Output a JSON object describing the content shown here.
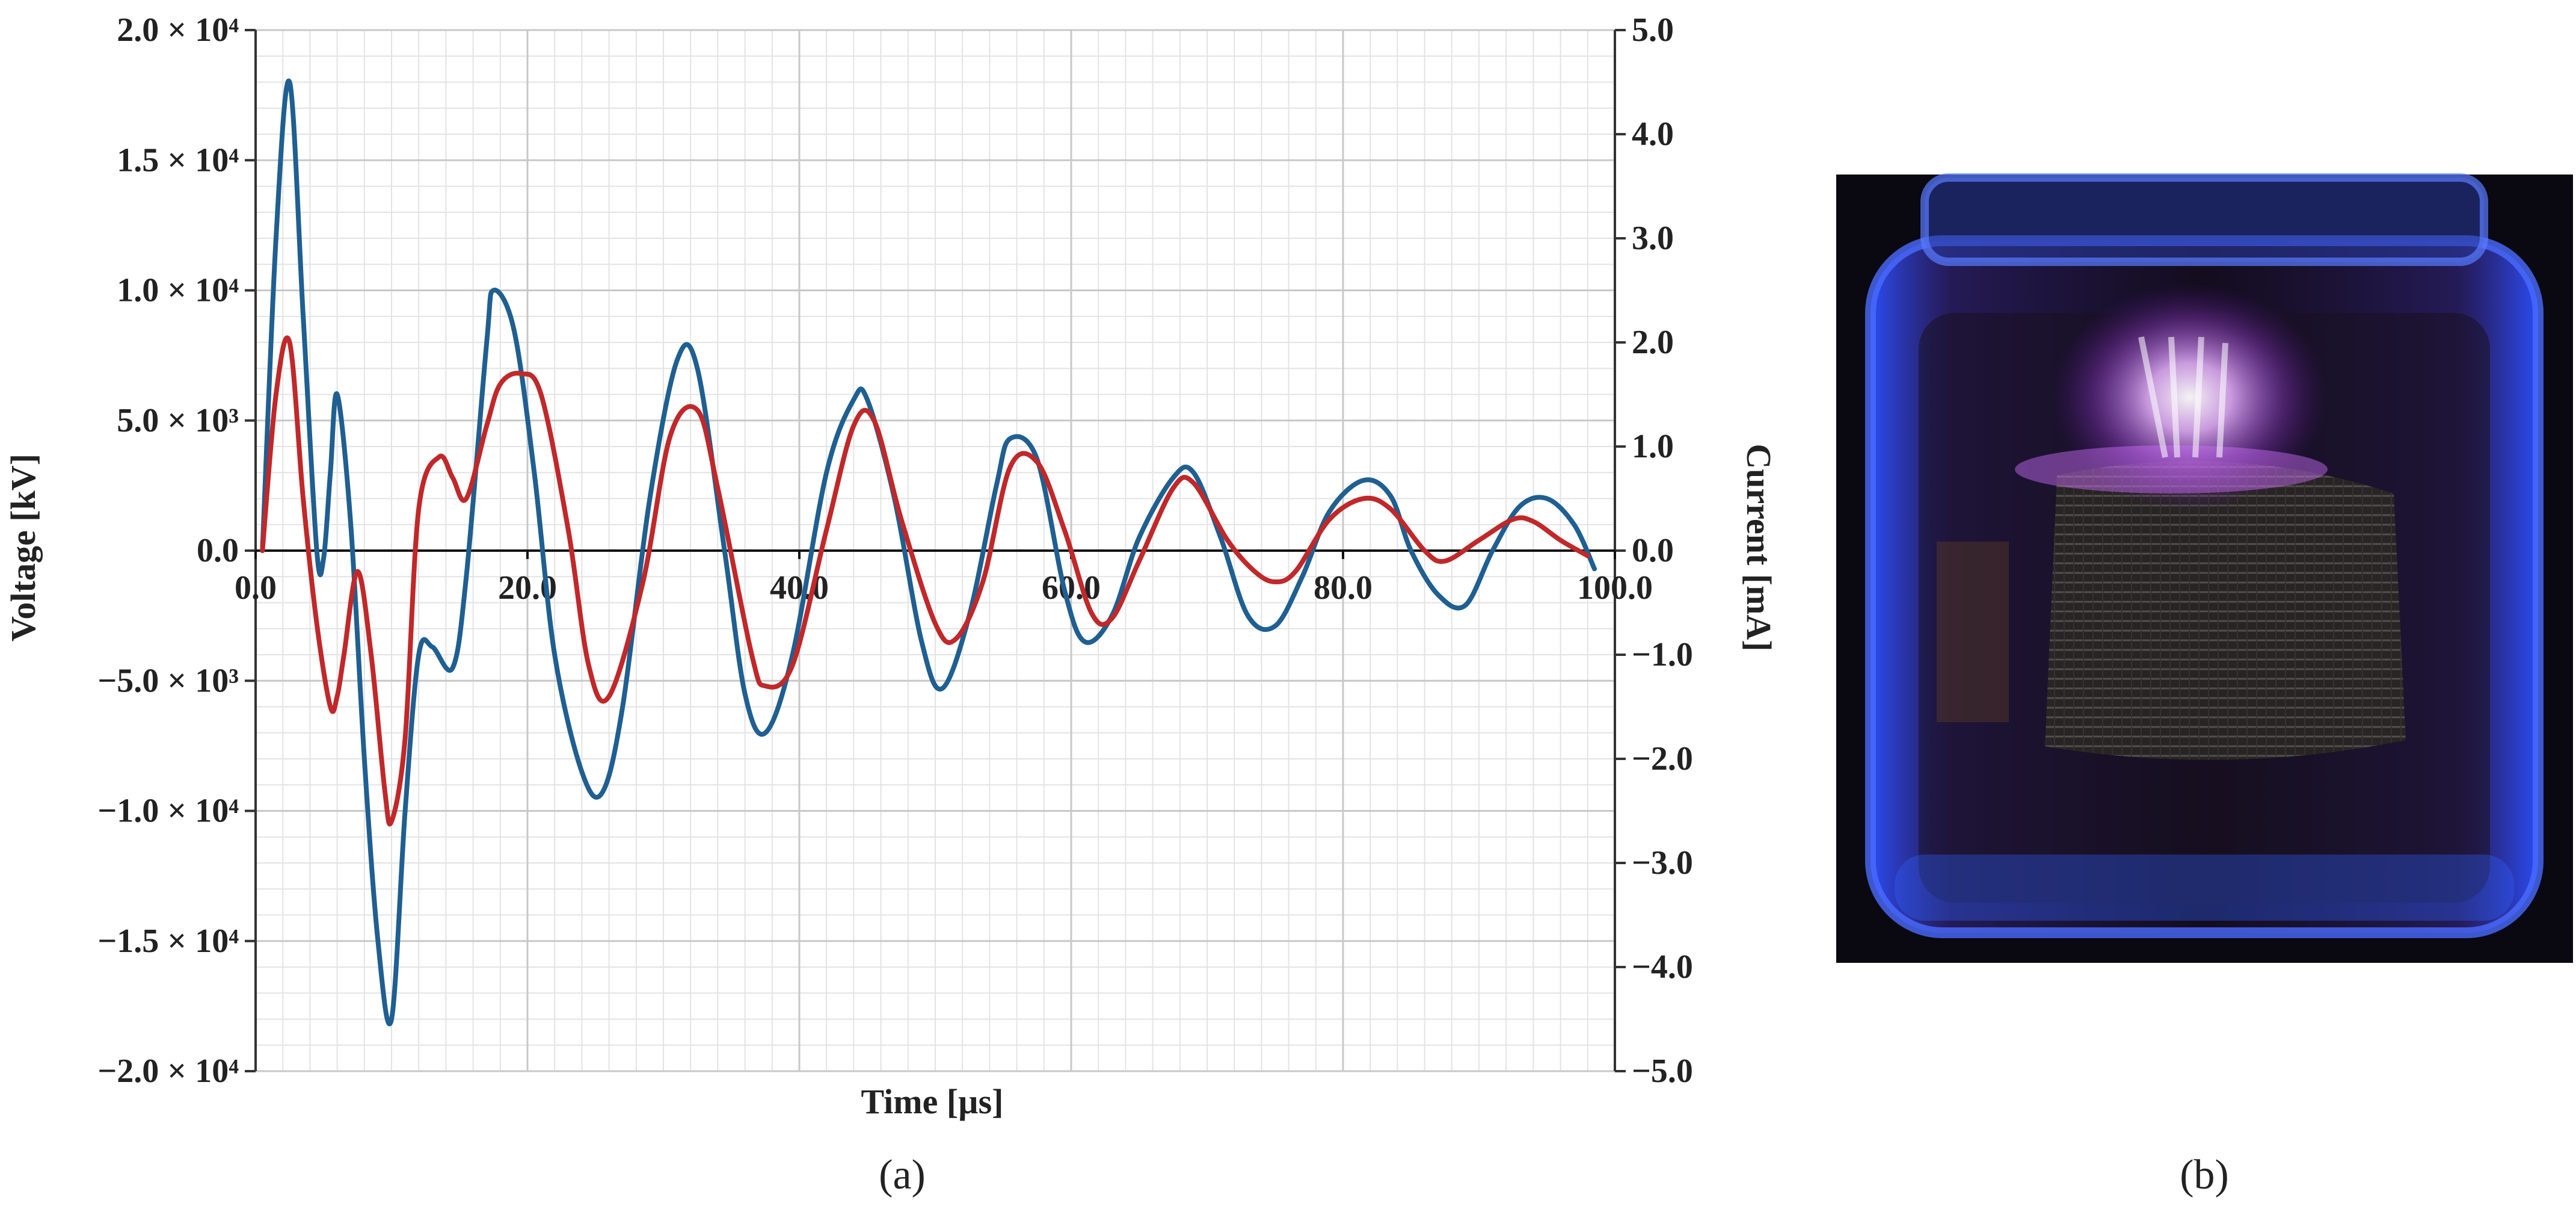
{
  "panel_a_label": "(a)",
  "panel_b_label": "(b)",
  "chart_data": {
    "type": "line",
    "title": "",
    "xlabel": "Time [µs]",
    "ylabel": "Voltage [kV]",
    "y2label": "Current [mA]",
    "xlim": [
      0,
      100
    ],
    "ylim": [
      -20000,
      20000
    ],
    "y2lim": [
      -5,
      5
    ],
    "grid": true,
    "legend": "none",
    "x_ticks": [
      "0.0",
      "20.0",
      "40.0",
      "60.0",
      "80.0",
      "100.0"
    ],
    "y_ticks_left": [
      "2.0 × 10⁴",
      "1.5 × 10⁴",
      "1.0 × 10⁴",
      "5.0 × 10³",
      "0.0",
      "−5.0 × 10³",
      "−1.0 × 10⁴",
      "−1.5 × 10⁴",
      "−2.0 × 10⁴"
    ],
    "y_ticks_right": [
      "5.0",
      "4.0",
      "3.0",
      "2.0",
      "1.0",
      "0.0",
      "−1.0",
      "−2.0",
      "−3.0",
      "−4.0",
      "−5.0"
    ],
    "series": [
      {
        "axis": "left",
        "color": "#1f5f91",
        "x": [
          0.5,
          1.5,
          2.5,
          3.5,
          4.5,
          5.0,
          5.5,
          6.0,
          7.0,
          8.0,
          9.0,
          10.0,
          11.0,
          12.0,
          13.0,
          14.5,
          15.5,
          17.0,
          17.5,
          19.0,
          20.5,
          22.0,
          24.0,
          25.5,
          27.0,
          29.0,
          31.0,
          32.5,
          34.5,
          36.0,
          37.5,
          39.5,
          42.0,
          44.0,
          45.0,
          47.0,
          49.0,
          50.5,
          52.5,
          54.5,
          55.5,
          57.5,
          59.5,
          61.0,
          63.0,
          65.0,
          67.5,
          69.0,
          71.0,
          73.0,
          75.0,
          77.0,
          79.0,
          81.5,
          83.5,
          85.0,
          87.0,
          89.0,
          91.0,
          93.0,
          95.0,
          97.0,
          98.5
        ],
        "y": [
          0,
          12000,
          18000,
          9000,
          0,
          -300,
          3000,
          6000,
          1000,
          -8000,
          -15000,
          -18000,
          -10000,
          -4000,
          -3700,
          -4500,
          -1000,
          8000,
          10000,
          8500,
          3000,
          -4000,
          -8500,
          -9300,
          -6000,
          2000,
          7300,
          7000,
          0,
          -5500,
          -7000,
          -4000,
          3000,
          5800,
          5800,
          2000,
          -3500,
          -5300,
          -2500,
          2500,
          4300,
          3500,
          -1500,
          -3500,
          -2500,
          500,
          2800,
          3000,
          500,
          -2500,
          -2900,
          -1000,
          1500,
          2700,
          2100,
          0,
          -1700,
          -2100,
          0,
          1700,
          2000,
          1000,
          -700
        ]
      },
      {
        "axis": "right",
        "color": "#c0282a",
        "x": [
          0.5,
          1.5,
          2.5,
          3.5,
          4.5,
          5.5,
          6.0,
          6.5,
          7.5,
          8.5,
          9.5,
          10.0,
          11.0,
          12.0,
          13.5,
          14.5,
          15.5,
          17.0,
          18.0,
          19.5,
          21.0,
          23.0,
          24.5,
          26.0,
          28.5,
          30.5,
          32.5,
          34.0,
          36.5,
          37.5,
          39.5,
          42.0,
          44.0,
          45.5,
          47.5,
          50.0,
          51.5,
          53.5,
          55.5,
          57.5,
          59.5,
          61.5,
          63.0,
          65.0,
          67.5,
          69.0,
          71.5,
          73.5,
          75.0,
          76.5,
          79.0,
          81.5,
          83.5,
          86.0,
          87.5,
          90.0,
          92.5,
          94.0,
          96.0,
          98.0
        ],
        "y": [
          0,
          1.5,
          2.0,
          0.5,
          -0.7,
          -1.5,
          -1.4,
          -1.0,
          -0.2,
          -1.0,
          -2.3,
          -2.6,
          -1.8,
          0.4,
          0.9,
          0.7,
          0.5,
          1.2,
          1.6,
          1.7,
          1.5,
          0.2,
          -1.1,
          -1.4,
          -0.3,
          1.1,
          1.35,
          0.6,
          -1.0,
          -1.3,
          -1.1,
          0.2,
          1.2,
          1.25,
          0.3,
          -0.7,
          -0.85,
          -0.3,
          0.8,
          0.85,
          0.2,
          -0.6,
          -0.65,
          -0.1,
          0.6,
          0.65,
          0.1,
          -0.2,
          -0.3,
          -0.2,
          0.3,
          0.5,
          0.4,
          0.0,
          -0.1,
          0.1,
          0.3,
          0.28,
          0.1,
          -0.05
        ]
      }
    ]
  }
}
